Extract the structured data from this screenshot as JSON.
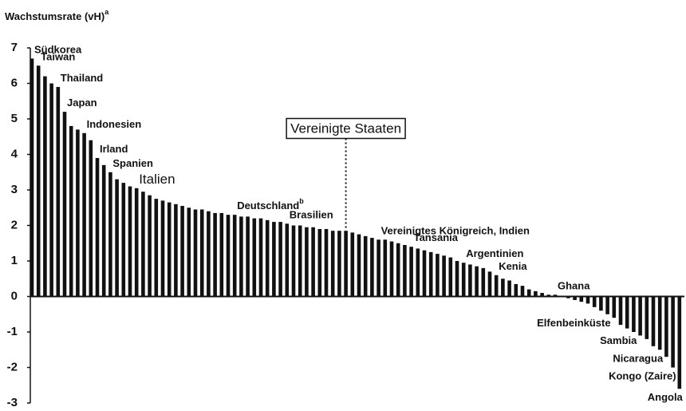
{
  "chart_data": {
    "type": "bar",
    "y_label": "Wachstumsrate (vH)",
    "y_label_note": "a",
    "label_notes": {
      "Deutschland": "b"
    },
    "highlight": "Vereinigte Staaten",
    "color": "#111111",
    "ylim": [
      -3,
      7
    ],
    "yticks": [
      7,
      6,
      5,
      4,
      3,
      2,
      1,
      0,
      -1,
      -2,
      -3
    ],
    "categories": [
      "Südkorea",
      "Taiwan",
      null,
      null,
      "Thailand",
      "Japan",
      null,
      null,
      "Indonesien",
      null,
      "Irland",
      null,
      "Spanien",
      null,
      null,
      null,
      "Italien",
      null,
      null,
      null,
      null,
      null,
      null,
      null,
      null,
      null,
      null,
      null,
      null,
      null,
      null,
      "Deutschland",
      null,
      null,
      null,
      null,
      null,
      null,
      null,
      "Brasilien",
      null,
      null,
      null,
      null,
      null,
      null,
      null,
      null,
      "Vereinigte Staaten",
      null,
      null,
      null,
      null,
      "Vereinigtes Königreich, Indien",
      null,
      null,
      null,
      null,
      "Tansania",
      null,
      null,
      null,
      null,
      null,
      null,
      null,
      "Argentinien",
      null,
      null,
      null,
      null,
      "Kenia",
      null,
      null,
      null,
      null,
      null,
      null,
      null,
      null,
      "Ghana",
      null,
      null,
      null,
      null,
      null,
      null,
      null,
      "Elfenbeinküste",
      null,
      null,
      null,
      "Sambia",
      null,
      null,
      null,
      "Nicaragua",
      null,
      "Kongo (Zaire)",
      "Angola"
    ],
    "values": [
      6.7,
      6.5,
      6.2,
      6.0,
      5.9,
      5.2,
      4.8,
      4.7,
      4.6,
      4.4,
      3.9,
      3.7,
      3.5,
      3.3,
      3.2,
      3.1,
      3.05,
      2.95,
      2.85,
      2.75,
      2.7,
      2.65,
      2.6,
      2.55,
      2.5,
      2.45,
      2.45,
      2.4,
      2.35,
      2.35,
      2.3,
      2.3,
      2.25,
      2.25,
      2.2,
      2.2,
      2.15,
      2.1,
      2.1,
      2.05,
      2.0,
      2.0,
      1.95,
      1.95,
      1.9,
      1.9,
      1.85,
      1.85,
      1.85,
      1.8,
      1.75,
      1.7,
      1.65,
      1.6,
      1.6,
      1.55,
      1.5,
      1.45,
      1.4,
      1.35,
      1.3,
      1.25,
      1.2,
      1.15,
      1.1,
      1.0,
      0.95,
      0.9,
      0.85,
      0.8,
      0.7,
      0.6,
      0.5,
      0.45,
      0.35,
      0.3,
      0.2,
      0.15,
      0.1,
      0.05,
      0.05,
      0.0,
      -0.05,
      -0.1,
      -0.15,
      -0.2,
      -0.3,
      -0.4,
      -0.5,
      -0.6,
      -0.8,
      -0.9,
      -1.0,
      -1.1,
      -1.2,
      -1.4,
      -1.5,
      -1.7,
      -2.0,
      -2.6
    ]
  }
}
